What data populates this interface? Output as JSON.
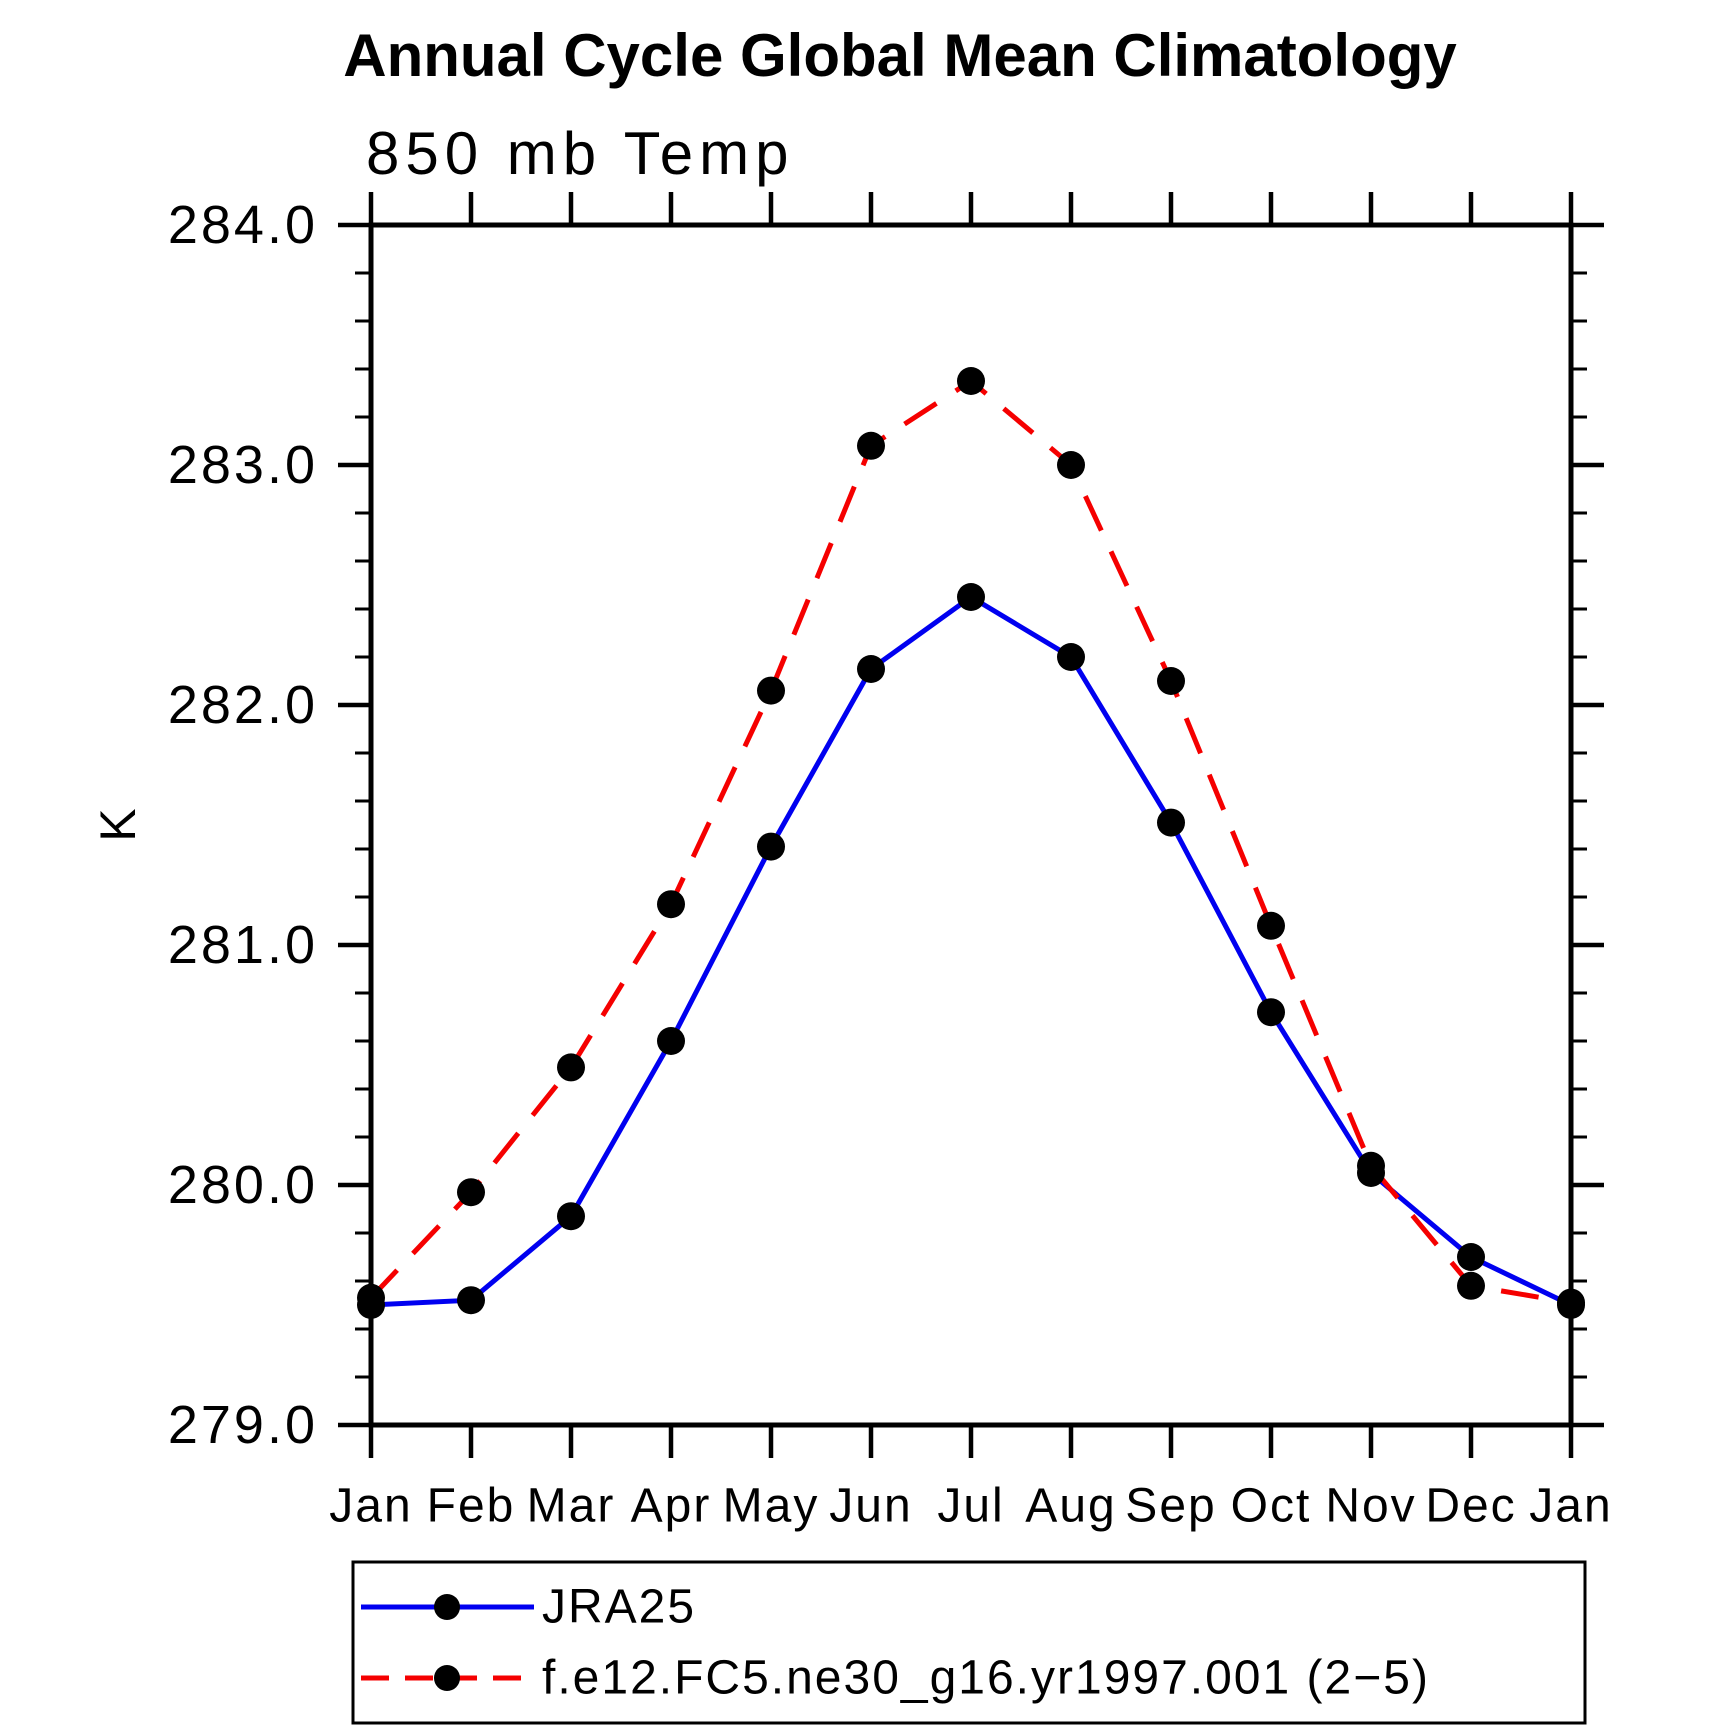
{
  "chart_data": {
    "type": "line",
    "title": "Annual Cycle Global Mean Climatology",
    "subtitle_left": "850 mb Temp",
    "ylabel": "K",
    "ylim": [
      279.0,
      284.0
    ],
    "ytick_major": 1.0,
    "ytick_minor": 0.2,
    "ytick_labels": [
      "284.0",
      "283.0",
      "282.0",
      "281.0",
      "280.0",
      "279.0"
    ],
    "x_categories": [
      "Jan",
      "Feb",
      "Mar",
      "Apr",
      "May",
      "Jun",
      "Jul",
      "Aug",
      "Sep",
      "Oct",
      "Nov",
      "Dec",
      "Jan"
    ],
    "grid": false,
    "legend_position": "bottom",
    "axis_color": "#000000",
    "series": [
      {
        "name": "JRA25",
        "color": "#0000f0",
        "line_style": "solid",
        "marker": "filled-circle",
        "marker_color": "#000000",
        "values": [
          279.5,
          279.52,
          279.87,
          280.6,
          281.41,
          282.15,
          282.45,
          282.2,
          281.51,
          280.72,
          280.05,
          279.7,
          279.5
        ]
      },
      {
        "name": "f.e12.FC5.ne30_g16.yr1997.001 (2−5)",
        "color": "#f50000",
        "line_style": "dashed",
        "marker": "filled-circle",
        "marker_color": "#000000",
        "values": [
          279.53,
          279.97,
          280.49,
          281.17,
          282.06,
          283.08,
          283.35,
          283.0,
          282.1,
          281.08,
          280.08,
          279.58,
          279.51
        ]
      }
    ]
  }
}
